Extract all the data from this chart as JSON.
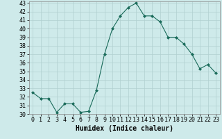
{
  "x": [
    0,
    1,
    2,
    3,
    4,
    5,
    6,
    7,
    8,
    9,
    10,
    11,
    12,
    13,
    14,
    15,
    16,
    17,
    18,
    19,
    20,
    21,
    22,
    23
  ],
  "y": [
    32.5,
    31.8,
    31.8,
    30.2,
    31.2,
    31.2,
    30.2,
    30.3,
    32.8,
    37.0,
    40.0,
    41.5,
    42.5,
    43.0,
    41.5,
    41.5,
    40.8,
    39.0,
    39.0,
    38.2,
    37.0,
    35.3,
    35.8,
    34.8
  ],
  "line_color": "#1a6b5a",
  "marker": "D",
  "marker_size": 2.0,
  "bg_color": "#ceeaea",
  "grid_color": "#b0d0d0",
  "xlabel": "Humidex (Indice chaleur)",
  "ylim": [
    30,
    43
  ],
  "xlim": [
    -0.5,
    23.5
  ],
  "yticks": [
    30,
    31,
    32,
    33,
    34,
    35,
    36,
    37,
    38,
    39,
    40,
    41,
    42,
    43
  ],
  "xticks": [
    0,
    1,
    2,
    3,
    4,
    5,
    6,
    7,
    8,
    9,
    10,
    11,
    12,
    13,
    14,
    15,
    16,
    17,
    18,
    19,
    20,
    21,
    22,
    23
  ],
  "xlabel_fontsize": 7,
  "tick_fontsize": 6
}
